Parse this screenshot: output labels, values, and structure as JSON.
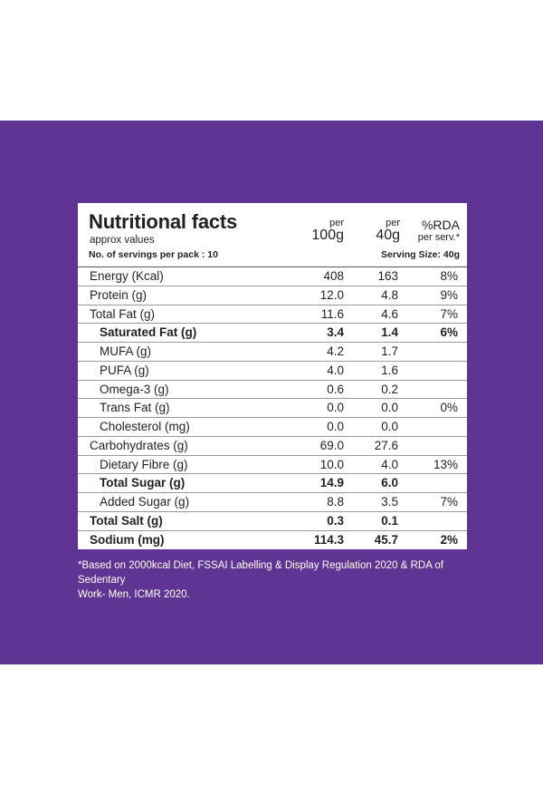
{
  "label": {
    "title": "Nutritional facts",
    "subtitle": "approx values",
    "col1_top": "per",
    "col1_bottom": "100g",
    "col2_top": "per",
    "col2_bottom": "40g",
    "col3_top": "%RDA",
    "col3_bottom": "per serv.*",
    "servings": "No. of servings per pack : 10",
    "serving_size": "Serving Size: 40g",
    "rows": [
      {
        "label": "Energy (Kcal)",
        "v100": "408",
        "v40": "163",
        "rda": "8%"
      },
      {
        "label": "Protein (g)",
        "v100": "12.0",
        "v40": "4.8",
        "rda": "9%"
      },
      {
        "label": "Total Fat (g)",
        "v100": "11.6",
        "v40": "4.6",
        "rda": "7%"
      },
      {
        "label": "Saturated Fat (g)",
        "v100": "3.4",
        "v40": "1.4",
        "rda": "6%"
      },
      {
        "label": "MUFA (g)",
        "v100": "4.2",
        "v40": "1.7",
        "rda": ""
      },
      {
        "label": "PUFA (g)",
        "v100": "4.0",
        "v40": "1.6",
        "rda": ""
      },
      {
        "label": "Omega-3 (g)",
        "v100": "0.6",
        "v40": "0.2",
        "rda": ""
      },
      {
        "label": "Trans Fat (g)",
        "v100": "0.0",
        "v40": "0.0",
        "rda": "0%"
      },
      {
        "label": "Cholesterol (mg)",
        "v100": "0.0",
        "v40": "0.0",
        "rda": ""
      },
      {
        "label": "Carbohydrates (g)",
        "v100": "69.0",
        "v40": "27.6",
        "rda": ""
      },
      {
        "label": "Dietary Fibre (g)",
        "v100": "10.0",
        "v40": "4.0",
        "rda": "13%"
      },
      {
        "label": "Total Sugar (g)",
        "v100": "14.9",
        "v40": "6.0",
        "rda": ""
      },
      {
        "label": "Added Sugar (g)",
        "v100": "8.8",
        "v40": "3.5",
        "rda": "7%"
      },
      {
        "label": "Total Salt (g)",
        "v100": "0.3",
        "v40": "0.1",
        "rda": ""
      },
      {
        "label": "Sodium (mg)",
        "v100": "114.3",
        "v40": "45.7",
        "rda": "2%"
      }
    ]
  },
  "footnote": {
    "line1": "*Based on 2000kcal Diet, FSSAI Labelling & Display Regulation 2020 & RDA of Sedentary",
    "line2": "Work- Men, ICMR 2020."
  },
  "colors": {
    "background_band": "#5f3492",
    "panel": "#ffffff",
    "text": "#231f20"
  }
}
